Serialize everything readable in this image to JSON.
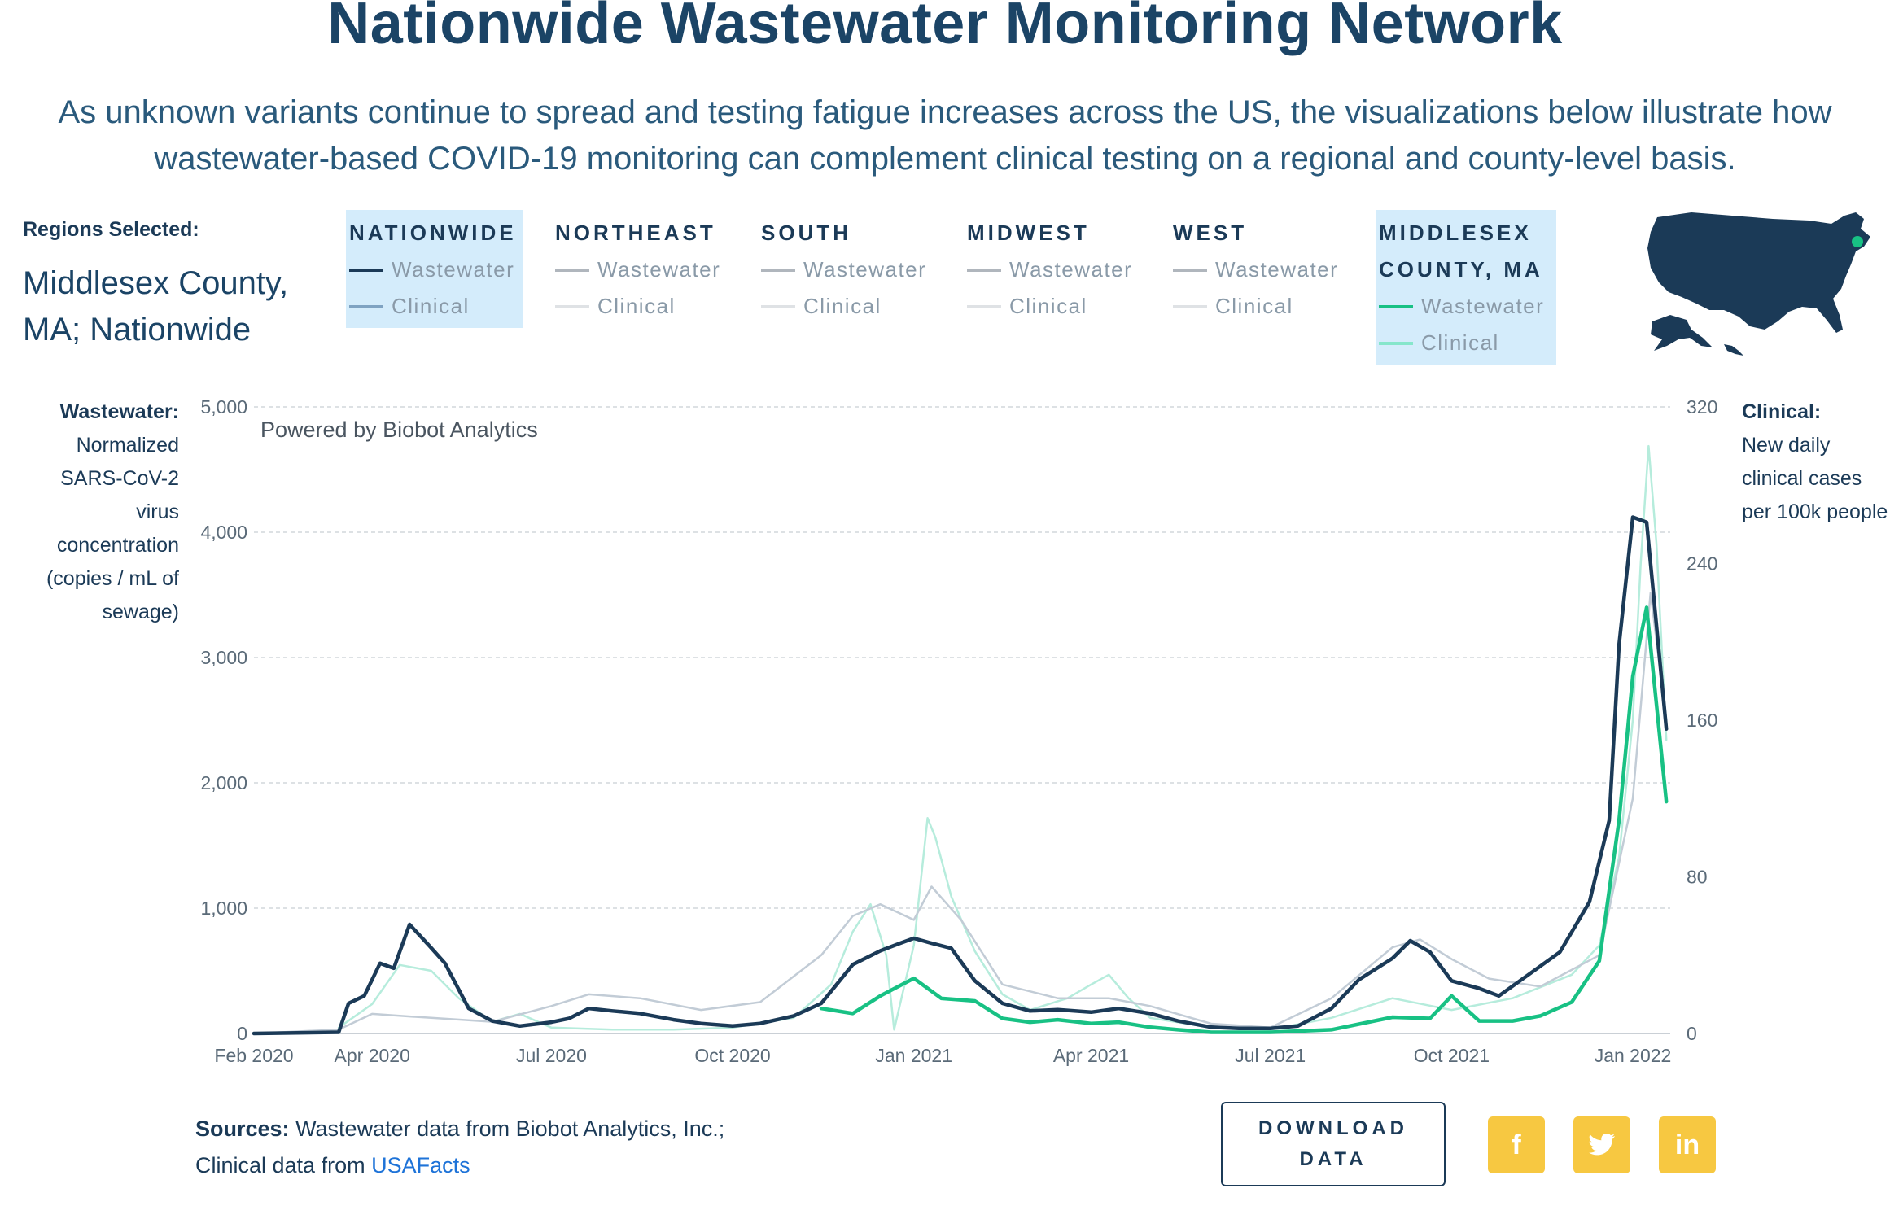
{
  "header": {
    "title": "Nationwide Wastewater Monitoring Network",
    "subtitle": "As unknown variants continue to spread and testing fatigue increases across the US, the visualizations below illustrate how wastewater-based COVID-19 monitoring can complement clinical testing on a regional and county-level basis."
  },
  "regions": {
    "label": "Regions Selected:",
    "value": "Middlesex County, MA; Nationwide"
  },
  "legend": [
    {
      "name": "NATIONWIDE",
      "selected": true,
      "wastewater": "Wastewater",
      "clinical": "Clinical",
      "ww_color": "#1b3a57",
      "cl_color": "#7fa3c2"
    },
    {
      "name": "NORTHEAST",
      "selected": false,
      "wastewater": "Wastewater",
      "clinical": "Clinical",
      "ww_color": "#b0b6bd",
      "cl_color": "#dfe2e5"
    },
    {
      "name": "SOUTH",
      "selected": false,
      "wastewater": "Wastewater",
      "clinical": "Clinical",
      "ww_color": "#b0b6bd",
      "cl_color": "#dfe2e5"
    },
    {
      "name": "MIDWEST",
      "selected": false,
      "wastewater": "Wastewater",
      "clinical": "Clinical",
      "ww_color": "#b0b6bd",
      "cl_color": "#dfe2e5"
    },
    {
      "name": "WEST",
      "selected": false,
      "wastewater": "Wastewater",
      "clinical": "Clinical",
      "ww_color": "#b0b6bd",
      "cl_color": "#dfe2e5"
    },
    {
      "name": "MIDDLESEX COUNTY, MA",
      "selected": true,
      "wastewater": "Wastewater",
      "clinical": "Clinical",
      "ww_color": "#18c184",
      "cl_color": "#86e6cb"
    }
  ],
  "axes": {
    "left_title_bold": "Wastewater:",
    "left_title_rest": "Normalized SARS-CoV-2 virus concentration (copies / mL of sewage)",
    "right_title_bold": "Clinical:",
    "right_title_rest": "New daily clinical cases per 100k people"
  },
  "watermark": "Powered by Biobot Analytics",
  "chart_data": {
    "type": "line",
    "x_ticks": [
      "Feb 2020",
      "Apr 2020",
      "Jul 2020",
      "Oct 2020",
      "Jan 2021",
      "Apr 2021",
      "Jul 2021",
      "Oct 2021",
      "Jan 2022"
    ],
    "x_tick_dates": [
      "2020-02-01",
      "2020-04-01",
      "2020-07-01",
      "2020-10-01",
      "2021-01-01",
      "2021-04-01",
      "2021-07-01",
      "2021-10-01",
      "2022-01-01"
    ],
    "ylim": [
      0,
      5000
    ],
    "y_ticks": [
      "0",
      "1,000",
      "2,000",
      "3,000",
      "4,000",
      "5,000"
    ],
    "y2lim": [
      0,
      320
    ],
    "y2_ticks": [
      "0",
      "80",
      "160",
      "240",
      "320"
    ],
    "grid": true,
    "series": [
      {
        "name": "Middlesex County, MA Clinical",
        "axis": "right",
        "color": "#b6ecdc",
        "width": 2.5,
        "x": [
          "2020-03-15",
          "2020-04-01",
          "2020-04-15",
          "2020-05-01",
          "2020-05-15",
          "2020-06-01",
          "2020-06-15",
          "2020-07-01",
          "2020-08-01",
          "2020-09-01",
          "2020-10-01",
          "2020-11-01",
          "2020-11-20",
          "2020-12-01",
          "2020-12-10",
          "2020-12-18",
          "2020-12-22",
          "2021-01-01",
          "2021-01-08",
          "2021-01-12",
          "2021-01-20",
          "2021-02-01",
          "2021-02-15",
          "2021-03-01",
          "2021-03-20",
          "2021-04-01",
          "2021-04-10",
          "2021-04-20",
          "2021-05-01",
          "2021-06-01",
          "2021-07-01",
          "2021-08-01",
          "2021-09-01",
          "2021-10-01",
          "2021-11-01",
          "2021-12-01",
          "2021-12-15",
          "2021-12-25",
          "2022-01-01",
          "2022-01-05",
          "2022-01-09",
          "2022-01-13",
          "2022-01-18"
        ],
        "values": [
          3,
          15,
          35,
          32,
          18,
          6,
          10,
          3,
          2,
          2,
          3,
          8,
          25,
          52,
          66,
          40,
          2,
          45,
          110,
          100,
          70,
          42,
          20,
          12,
          18,
          25,
          30,
          18,
          8,
          3,
          2,
          8,
          18,
          12,
          18,
          30,
          45,
          90,
          160,
          240,
          300,
          250,
          150
        ]
      },
      {
        "name": "Nationwide Clinical",
        "axis": "right",
        "color": "#c2ccd6",
        "width": 2.5,
        "x": [
          "2020-02-01",
          "2020-03-15",
          "2020-04-01",
          "2020-04-15",
          "2020-05-01",
          "2020-06-01",
          "2020-07-01",
          "2020-07-20",
          "2020-08-15",
          "2020-09-15",
          "2020-10-15",
          "2020-11-15",
          "2020-12-01",
          "2020-12-15",
          "2021-01-01",
          "2021-01-10",
          "2021-01-25",
          "2021-02-15",
          "2021-03-15",
          "2021-04-10",
          "2021-05-01",
          "2021-06-01",
          "2021-07-01",
          "2021-08-01",
          "2021-09-01",
          "2021-09-15",
          "2021-10-01",
          "2021-10-20",
          "2021-11-15",
          "2021-12-15",
          "2022-01-01",
          "2022-01-10",
          "2022-01-18"
        ],
        "values": [
          0,
          2,
          10,
          9,
          8,
          6,
          14,
          20,
          18,
          12,
          16,
          40,
          60,
          66,
          58,
          75,
          58,
          25,
          18,
          18,
          14,
          5,
          3,
          18,
          44,
          48,
          38,
          28,
          24,
          40,
          120,
          225,
          160
        ]
      },
      {
        "name": "Nationwide Wastewater",
        "axis": "left",
        "color": "#1b3a57",
        "width": 4.5,
        "x": [
          "2020-02-01",
          "2020-03-15",
          "2020-03-20",
          "2020-03-28",
          "2020-04-05",
          "2020-04-12",
          "2020-04-20",
          "2020-04-30",
          "2020-05-08",
          "2020-05-20",
          "2020-06-01",
          "2020-06-15",
          "2020-07-01",
          "2020-07-10",
          "2020-07-20",
          "2020-08-01",
          "2020-08-15",
          "2020-09-01",
          "2020-09-15",
          "2020-10-01",
          "2020-10-15",
          "2020-11-01",
          "2020-11-15",
          "2020-12-01",
          "2020-12-15",
          "2020-12-25",
          "2021-01-01",
          "2021-01-10",
          "2021-01-20",
          "2021-02-01",
          "2021-02-15",
          "2021-03-01",
          "2021-03-15",
          "2021-04-01",
          "2021-04-15",
          "2021-05-01",
          "2021-05-15",
          "2021-06-01",
          "2021-06-15",
          "2021-07-01",
          "2021-07-15",
          "2021-08-01",
          "2021-08-15",
          "2021-09-01",
          "2021-09-10",
          "2021-09-20",
          "2021-10-01",
          "2021-10-15",
          "2021-10-25",
          "2021-11-10",
          "2021-11-25",
          "2021-12-10",
          "2021-12-20",
          "2021-12-25",
          "2022-01-01",
          "2022-01-08",
          "2022-01-18"
        ],
        "values": [
          0,
          10,
          240,
          300,
          560,
          520,
          870,
          700,
          560,
          200,
          100,
          60,
          90,
          120,
          200,
          180,
          160,
          110,
          80,
          60,
          80,
          140,
          240,
          550,
          660,
          720,
          760,
          720,
          680,
          420,
          240,
          180,
          190,
          170,
          200,
          160,
          100,
          50,
          40,
          40,
          60,
          200,
          430,
          600,
          740,
          650,
          420,
          360,
          300,
          480,
          650,
          1050,
          1700,
          3100,
          4120,
          4080,
          2430
        ]
      },
      {
        "name": "Middlesex County, MA Wastewater",
        "axis": "left",
        "color": "#18c184",
        "width": 4.5,
        "x": [
          "2020-11-15",
          "2020-12-01",
          "2020-12-15",
          "2021-01-01",
          "2021-01-15",
          "2021-02-01",
          "2021-02-15",
          "2021-03-01",
          "2021-03-15",
          "2021-04-01",
          "2021-04-15",
          "2021-05-01",
          "2021-05-15",
          "2021-06-01",
          "2021-07-01",
          "2021-08-01",
          "2021-09-01",
          "2021-09-20",
          "2021-10-01",
          "2021-10-15",
          "2021-11-01",
          "2021-11-15",
          "2021-12-01",
          "2021-12-15",
          "2021-12-25",
          "2022-01-01",
          "2022-01-08",
          "2022-01-18"
        ],
        "values": [
          200,
          160,
          300,
          440,
          280,
          260,
          120,
          90,
          110,
          80,
          90,
          50,
          30,
          10,
          10,
          30,
          130,
          120,
          300,
          100,
          100,
          140,
          250,
          580,
          1700,
          2850,
          3400,
          1850
        ]
      }
    ]
  },
  "sources": {
    "label": "Sources:",
    "text1": "Wastewater data from Biobot Analytics, Inc.;",
    "text2": "Clinical data from",
    "link": "USAFacts"
  },
  "download": {
    "line1": "DOWNLOAD",
    "line2": "DATA"
  },
  "social": {
    "facebook": "f",
    "twitter": "twitter-bird",
    "linkedin": "in",
    "color": "#f7c841"
  }
}
